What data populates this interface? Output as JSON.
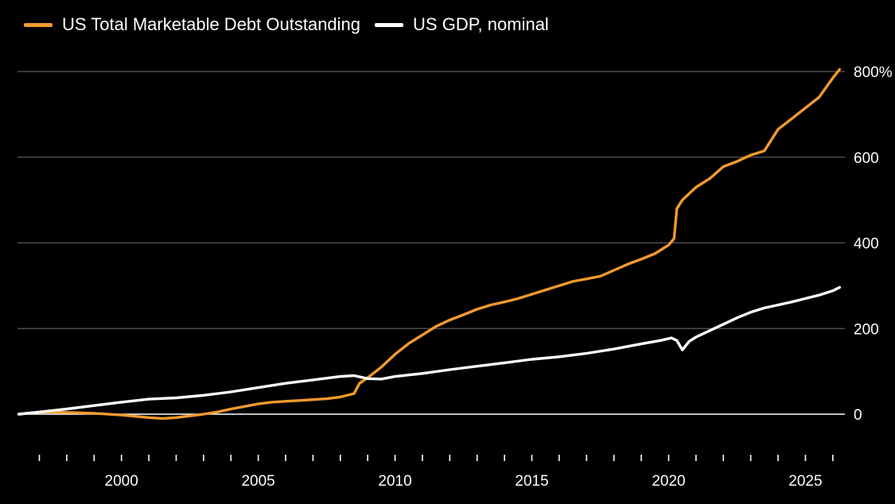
{
  "chart_data": {
    "type": "line",
    "title": "",
    "xlabel": "",
    "ylabel": "",
    "unit": "%",
    "xlim": [
      1996.2,
      2026.5
    ],
    "ylim": [
      -100,
      840
    ],
    "y_ticks": [
      0,
      200,
      400,
      600,
      800
    ],
    "y_tick_labels": [
      "0",
      "200",
      "400",
      "600",
      "800%"
    ],
    "x_ticks": [
      2000,
      2005,
      2010,
      2015,
      2020,
      2025
    ],
    "x_tick_labels": [
      "2000",
      "2005",
      "2010",
      "2015",
      "2020",
      "2025"
    ],
    "grid": true,
    "legend_position": "top-left",
    "series": [
      {
        "name": "US Total Marketable Debt Outstanding",
        "color": "#f29a2e",
        "x": [
          1996.25,
          1997,
          1998,
          1999,
          2000,
          2000.5,
          2001,
          2001.5,
          2002,
          2002.5,
          2003,
          2003.5,
          2004,
          2004.5,
          2005,
          2005.5,
          2006,
          2006.5,
          2007,
          2007.5,
          2008,
          2008.5,
          2008.7,
          2009,
          2009.5,
          2010,
          2010.5,
          2011,
          2011.5,
          2012,
          2012.5,
          2013,
          2013.5,
          2014,
          2014.5,
          2015,
          2015.5,
          2016,
          2016.5,
          2017,
          2017.5,
          2018,
          2018.5,
          2019,
          2019.5,
          2020,
          2020.2,
          2020.3,
          2020.5,
          2021,
          2021.5,
          2022,
          2022.5,
          2023,
          2023.5,
          2024,
          2024.5,
          2025,
          2025.5,
          2026,
          2026.25
        ],
        "y": [
          0,
          5,
          4,
          2,
          -2,
          -5,
          -8,
          -10,
          -8,
          -4,
          0,
          5,
          12,
          18,
          24,
          28,
          30,
          32,
          34,
          36,
          40,
          48,
          72,
          85,
          110,
          140,
          165,
          185,
          205,
          220,
          232,
          245,
          255,
          262,
          270,
          280,
          290,
          300,
          310,
          316,
          322,
          336,
          350,
          362,
          375,
          395,
          410,
          480,
          500,
          530,
          550,
          578,
          590,
          605,
          615,
          665,
          690,
          715,
          740,
          785,
          805
        ]
      },
      {
        "name": "US GDP, nominal",
        "color": "#ffffff",
        "x": [
          1996.25,
          1997,
          1998,
          1999,
          2000,
          2001,
          2002,
          2003,
          2004,
          2005,
          2006,
          2007,
          2008,
          2008.5,
          2009,
          2009.5,
          2010,
          2011,
          2012,
          2013,
          2014,
          2015,
          2016,
          2017,
          2018,
          2019,
          2019.7,
          2020.1,
          2020.3,
          2020.5,
          2020.75,
          2021,
          2021.5,
          2022,
          2022.5,
          2023,
          2023.5,
          2024,
          2024.5,
          2025,
          2025.5,
          2026,
          2026.25
        ],
        "y": [
          0,
          5,
          12,
          20,
          28,
          35,
          38,
          44,
          52,
          62,
          72,
          80,
          88,
          90,
          83,
          82,
          88,
          95,
          104,
          112,
          120,
          128,
          134,
          142,
          152,
          164,
          172,
          178,
          172,
          150,
          170,
          180,
          195,
          210,
          225,
          238,
          248,
          255,
          262,
          270,
          278,
          288,
          296
        ]
      }
    ]
  }
}
